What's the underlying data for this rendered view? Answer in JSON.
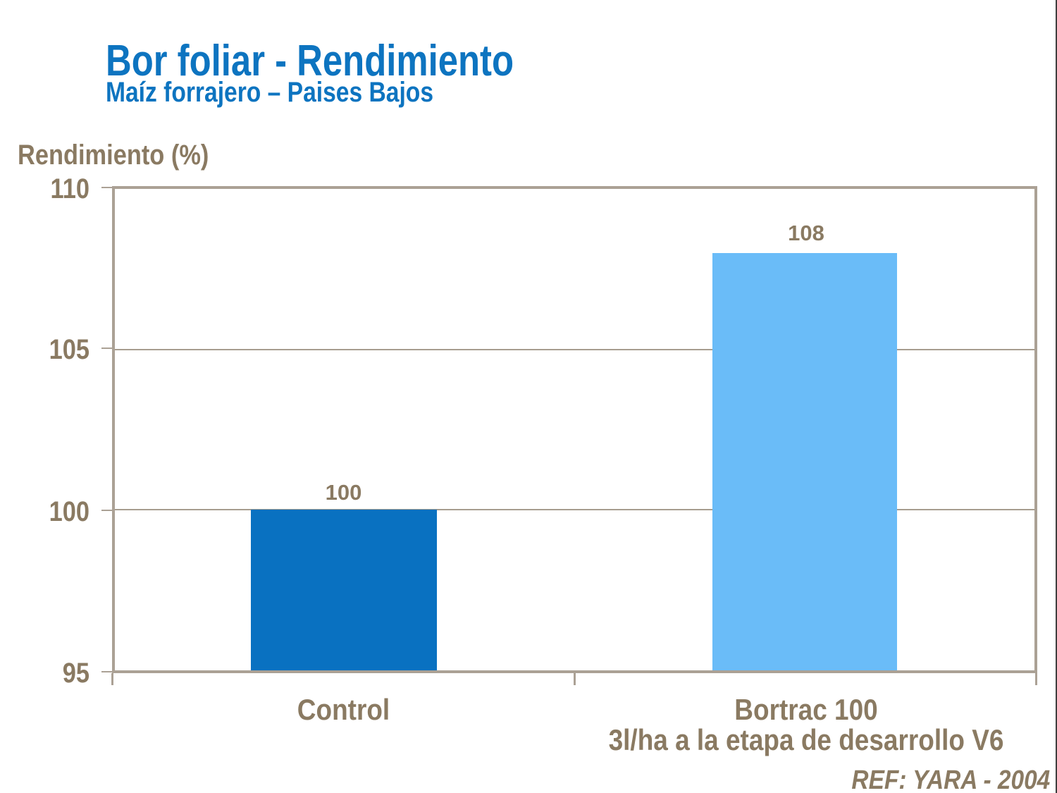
{
  "header": {
    "title": "Bor foliar - Rendimiento",
    "subtitle": "Maíz forrajero – Paises Bajos"
  },
  "footer": {
    "reference": "REF: YARA - 2004"
  },
  "colors": {
    "heading_blue": "#0D74C0",
    "text_taupe": "#8A7A62",
    "axis_line": "#ABA195",
    "gridline": "#A79D8F",
    "bar_control": "#0971C1",
    "bar_bortrac": "#6ABCF8"
  },
  "chart_data": {
    "type": "bar",
    "title": "Bor foliar - Rendimiento",
    "subtitle": "Maíz forrajero – Paises Bajos",
    "xlabel": "",
    "ylabel": "Rendimiento (%)",
    "ylim": [
      95,
      110
    ],
    "yticks": [
      110,
      105,
      100,
      95
    ],
    "ytick_labels": [
      "110",
      "105",
      "100",
      "95"
    ],
    "grid": true,
    "legend": false,
    "categories": [
      "Control",
      "Bortrac 100 — 3l/ha a la etapa de desarrollo V6"
    ],
    "x_categories": [
      {
        "line1": "Control",
        "line2": ""
      },
      {
        "line1": "Bortrac 100",
        "line2": "3l/ha a la etapa de desarrollo V6"
      }
    ],
    "values": [
      100,
      108
    ],
    "bar_colors": [
      "#0971C1",
      "#6ABCF8"
    ],
    "source": "REF: YARA - 2004"
  }
}
